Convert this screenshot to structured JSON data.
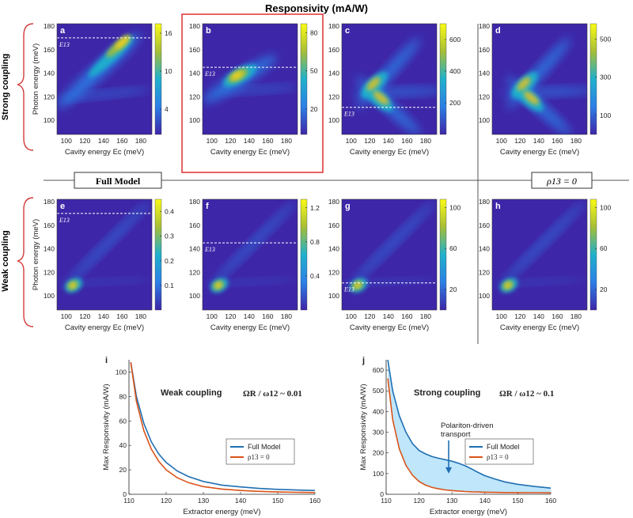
{
  "figure": {
    "title": "Responsivity (mA/W)",
    "row_labels": {
      "strong": "Strong coupling",
      "weak": "Weak coupling"
    },
    "divider_labels": {
      "full_model": "Full Model",
      "rho13_zero": "ρ13 = 0"
    }
  },
  "colors": {
    "map_low": "#3e26a8",
    "map_mid": "#1fb1cc",
    "map_high": "#f9fb15",
    "full_model": "#1f6fb2",
    "rho13_zero": "#d95319",
    "fill": "#bfe6fa",
    "highlight": "#e03030"
  },
  "chart_data": [
    {
      "type": "heatmap",
      "panel": "a",
      "row": "strong",
      "model": "full",
      "xlabel": "Cavity energy Ec (meV)",
      "ylabel": "Photon energy (meV)",
      "x_ticks": [
        100,
        120,
        140,
        160,
        180
      ],
      "y_ticks": [
        100,
        120,
        140,
        160,
        180
      ],
      "xlim": [
        90,
        192
      ],
      "ylim": [
        88,
        182
      ],
      "colorbar_ticks": [
        4,
        10,
        16
      ],
      "colorbar_range": [
        0,
        17.5
      ],
      "e13_line": 170,
      "e13_label": "E13",
      "highlighted": false,
      "ridges": "strong-upper"
    },
    {
      "type": "heatmap",
      "panel": "b",
      "row": "strong",
      "model": "full",
      "xlabel": "Cavity energy Ec (meV)",
      "ylabel": "",
      "x_ticks": [
        100,
        120,
        140,
        160,
        180
      ],
      "y_ticks": [
        100,
        120,
        140,
        160,
        180
      ],
      "xlim": [
        90,
        192
      ],
      "ylim": [
        88,
        182
      ],
      "colorbar_ticks": [
        20,
        50,
        80
      ],
      "colorbar_range": [
        0,
        87
      ],
      "e13_line": 145,
      "e13_label": "E13",
      "highlighted": true,
      "ridges": "strong-mid"
    },
    {
      "type": "heatmap",
      "panel": "c",
      "row": "strong",
      "model": "full",
      "xlabel": "Cavity energy Ec (meV)",
      "ylabel": "",
      "x_ticks": [
        100,
        120,
        140,
        160,
        180
      ],
      "y_ticks": [
        100,
        120,
        140,
        160,
        180
      ],
      "xlim": [
        90,
        192
      ],
      "ylim": [
        88,
        182
      ],
      "colorbar_ticks": [
        200,
        400,
        600
      ],
      "colorbar_range": [
        0,
        700
      ],
      "e13_line": 111,
      "e13_label": "E13",
      "highlighted": false,
      "ridges": "strong-cross"
    },
    {
      "type": "heatmap",
      "panel": "d",
      "row": "strong",
      "model": "rho13_zero",
      "xlabel": "Cavity energy Ec (meV)",
      "ylabel": "",
      "x_ticks": [
        100,
        120,
        140,
        160,
        180
      ],
      "y_ticks": [
        100,
        120,
        140,
        160,
        180
      ],
      "xlim": [
        90,
        192
      ],
      "ylim": [
        88,
        182
      ],
      "colorbar_ticks": [
        100,
        300,
        500
      ],
      "colorbar_range": [
        0,
        580
      ],
      "e13_line": null,
      "e13_label": "",
      "highlighted": false,
      "ridges": "strong-cross"
    },
    {
      "type": "heatmap",
      "panel": "e",
      "row": "weak",
      "model": "full",
      "xlabel": "Cavity energy Ec (meV)",
      "ylabel": "Photon energy (meV)",
      "x_ticks": [
        100,
        120,
        140,
        160,
        180
      ],
      "y_ticks": [
        100,
        120,
        140,
        160,
        180
      ],
      "xlim": [
        90,
        192
      ],
      "ylim": [
        88,
        182
      ],
      "colorbar_ticks": [
        0.1,
        0.2,
        0.3,
        0.4
      ],
      "colorbar_range": [
        0,
        0.45
      ],
      "e13_line": 170,
      "e13_label": "E13",
      "highlighted": false,
      "ridges": "weak"
    },
    {
      "type": "heatmap",
      "panel": "f",
      "row": "weak",
      "model": "full",
      "xlabel": "Cavity energy Ec (meV)",
      "ylabel": "",
      "x_ticks": [
        100,
        120,
        140,
        160,
        180
      ],
      "y_ticks": [
        100,
        120,
        140,
        160,
        180
      ],
      "xlim": [
        90,
        192
      ],
      "ylim": [
        88,
        182
      ],
      "colorbar_ticks": [
        0.4,
        0.8,
        1.2
      ],
      "colorbar_range": [
        0,
        1.3
      ],
      "e13_line": 145,
      "e13_label": "E13",
      "highlighted": false,
      "ridges": "weak"
    },
    {
      "type": "heatmap",
      "panel": "g",
      "row": "weak",
      "model": "full",
      "xlabel": "Cavity energy Ec (meV)",
      "ylabel": "",
      "x_ticks": [
        100,
        120,
        140,
        160,
        180
      ],
      "y_ticks": [
        100,
        120,
        140,
        160,
        180
      ],
      "xlim": [
        90,
        192
      ],
      "ylim": [
        88,
        182
      ],
      "colorbar_ticks": [
        20,
        60,
        100
      ],
      "colorbar_range": [
        0,
        108
      ],
      "e13_line": 111,
      "e13_label": "E13",
      "highlighted": false,
      "ridges": "weak"
    },
    {
      "type": "heatmap",
      "panel": "h",
      "row": "weak",
      "model": "rho13_zero",
      "xlabel": "Cavity energy Ec (meV)",
      "ylabel": "",
      "x_ticks": [
        100,
        120,
        140,
        160,
        180
      ],
      "y_ticks": [
        100,
        120,
        140,
        160,
        180
      ],
      "xlim": [
        90,
        192
      ],
      "ylim": [
        88,
        182
      ],
      "colorbar_ticks": [
        20,
        60,
        100
      ],
      "colorbar_range": [
        0,
        108
      ],
      "e13_line": null,
      "e13_label": "",
      "highlighted": false,
      "ridges": "weak"
    },
    {
      "type": "line",
      "panel": "i",
      "title": "Weak coupling",
      "ratio_label": "ΩR / ω12 ~ 0.01",
      "xlabel": "Extractor energy (meV)",
      "ylabel": "Max Responsivity (mA/W)",
      "xlim": [
        110,
        160
      ],
      "ylim": [
        0,
        110
      ],
      "x_ticks": [
        110,
        120,
        130,
        140,
        150,
        160
      ],
      "y_ticks": [
        0,
        20,
        40,
        60,
        80,
        100
      ],
      "x": [
        110.5,
        112,
        114,
        116,
        118,
        120,
        123,
        126,
        130,
        135,
        140,
        145,
        150,
        155,
        160
      ],
      "series": [
        {
          "name": "Full Model",
          "values": [
            108,
            80,
            58,
            43,
            33,
            26,
            19,
            14.5,
            10.5,
            7.5,
            6,
            4.8,
            4,
            3.5,
            3.1
          ]
        },
        {
          "name": "ρ13 = 0",
          "values": [
            108,
            76,
            52,
            37,
            27,
            20,
            13.5,
            9.5,
            6.3,
            4.3,
            3.1,
            2.4,
            1.9,
            1.6,
            1.4
          ]
        }
      ],
      "legend": [
        "Full Model",
        "ρ13 = 0"
      ]
    },
    {
      "type": "line",
      "panel": "j",
      "title": "Strong coupling",
      "ratio_label": "ΩR / ω12 ~ 0.1",
      "xlabel": "Extractor energy (meV)",
      "ylabel": "Max Responsivity (mA/W)",
      "xlim": [
        110,
        160
      ],
      "ylim": [
        0,
        650
      ],
      "x_ticks": [
        110,
        120,
        130,
        140,
        150,
        160
      ],
      "y_ticks": [
        0,
        100,
        200,
        300,
        400,
        500,
        600
      ],
      "x": [
        110.5,
        112,
        114,
        116,
        118,
        120,
        122,
        124,
        126,
        128,
        130,
        132,
        134,
        136,
        138,
        140,
        143,
        146,
        150,
        155,
        160
      ],
      "series": [
        {
          "name": "Full Model",
          "values": [
            650,
            500,
            380,
            300,
            245,
            212,
            195,
            182,
            174,
            167,
            160,
            150,
            138,
            122,
            105,
            90,
            74,
            60,
            48,
            38,
            30
          ]
        },
        {
          "name": "ρ13 = 0",
          "values": [
            560,
            360,
            220,
            140,
            92,
            62,
            44,
            33,
            26,
            21,
            18,
            15.5,
            13.5,
            12,
            11,
            10,
            9,
            8.5,
            8,
            7.5,
            7
          ]
        }
      ],
      "legend": [
        "Full Model",
        "ρ13 = 0"
      ],
      "annotation": "Polariton-driven transport",
      "annotation_x": 129,
      "annotation_y": 100
    }
  ]
}
